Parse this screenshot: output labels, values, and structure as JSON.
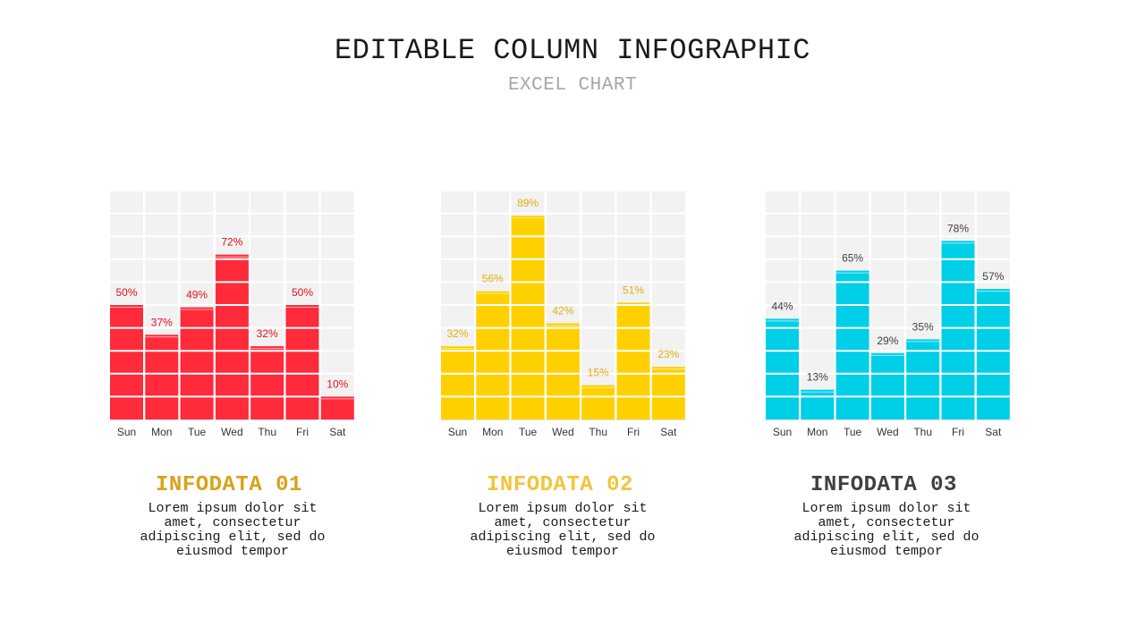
{
  "header": {
    "title": "EDITABLE COLUMN INFOGRAPHIC",
    "subtitle": "EXCEL CHART"
  },
  "chart_data": [
    {
      "type": "bar",
      "categories": [
        "Sun",
        "Mon",
        "Tue",
        "Wed",
        "Thu",
        "Fri",
        "Sat"
      ],
      "values": [
        50,
        37,
        49,
        72,
        32,
        50,
        10
      ],
      "value_labels": [
        "50%",
        "37%",
        "49%",
        "72%",
        "32%",
        "50%",
        "10%"
      ],
      "ylim": [
        0,
        100
      ],
      "color": "#ff2a3a",
      "label_color": "#e0101f"
    },
    {
      "type": "bar",
      "categories": [
        "Sun",
        "Mon",
        "Tue",
        "Wed",
        "Thu",
        "Fri",
        "Sat"
      ],
      "values": [
        32,
        56,
        89,
        42,
        15,
        51,
        23
      ],
      "value_labels": [
        "32%",
        "56%",
        "89%",
        "42%",
        "15%",
        "51%",
        "23%"
      ],
      "ylim": [
        0,
        100
      ],
      "color": "#ffd000",
      "label_color": "#e0b010"
    },
    {
      "type": "bar",
      "categories": [
        "Sun",
        "Mon",
        "Tue",
        "Wed",
        "Thu",
        "Fri",
        "Sat"
      ],
      "values": [
        44,
        13,
        65,
        29,
        35,
        78,
        57
      ],
      "value_labels": [
        "44%",
        "13%",
        "65%",
        "29%",
        "35%",
        "78%",
        "57%"
      ],
      "ylim": [
        0,
        100
      ],
      "color": "#00cfe8",
      "label_color": "#404040"
    }
  ],
  "infos": [
    {
      "title": "INFODATA 01",
      "color": "#d9a21b",
      "text": "Lorem ipsum dolor sit amet, consectetur adipiscing elit, sed do eiusmod tempor"
    },
    {
      "title": "INFODATA 02",
      "color": "#f2c43c",
      "text": "Lorem ipsum dolor sit amet, consectetur adipiscing elit, sed do eiusmod tempor"
    },
    {
      "title": "INFODATA 03",
      "color": "#404040",
      "text": "Lorem ipsum dolor sit amet, consectetur adipiscing elit, sed do eiusmod tempor"
    }
  ]
}
